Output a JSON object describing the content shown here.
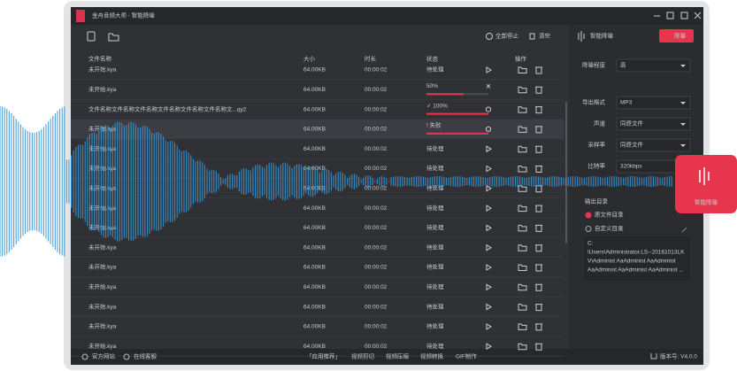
{
  "title_bar": {
    "title": "金舟音频大师 - 智能降噪"
  },
  "toolbar": {
    "stop_all": "全部停止",
    "clear": "清空"
  },
  "table": {
    "columns": [
      "文件名称",
      "大小",
      "时长",
      "状态",
      "操作"
    ],
    "rows": [
      [
        "未开始.kya",
        "64.00KB",
        "00:00:02",
        "待处理"
      ],
      [
        "未开始.kya",
        "64.00KB",
        "00:00:02",
        "50%"
      ],
      [
        "文件名称文件名称文件名称文件名称文件名称文件名称文...qy2",
        "64.00KB",
        "00:00:02",
        "✓ 100%"
      ],
      [
        "未开始.kya",
        "64.00KB",
        "00:00:02",
        "! 失败"
      ],
      [
        "未开始.kya",
        "64.00KB",
        "00:00:02",
        "待处理"
      ],
      [
        "未开始.kya",
        "64.00KB",
        "00:00:02",
        "待处理"
      ],
      [
        "未开始.kya",
        "64.00KB",
        "00:00:02",
        "待处理"
      ],
      [
        "未开始.kya",
        "64.00KB",
        "00:00:02",
        "待处理"
      ],
      [
        "未开始.kya",
        "64.00KB",
        "00:00:02",
        "待处理"
      ],
      [
        "未开始.kya",
        "64.00KB",
        "00:00:02",
        "待处理"
      ],
      [
        "未开始.kya",
        "64.00KB",
        "00:00:02",
        "待处理"
      ],
      [
        "未开始.kya",
        "64.00KB",
        "00:00:02",
        "待处理"
      ],
      [
        "未开始.kya",
        "64.00KB",
        "00:00:02",
        "待处理"
      ],
      [
        "未开始.kya",
        "64.00KB",
        "00:00:02",
        "待处理"
      ],
      [
        "未开始.kya",
        "64.00KB",
        "00:00:02",
        "待处理"
      ]
    ]
  },
  "panel": {
    "title": "智能降噪",
    "action": "降噪",
    "settings": [
      {
        "label": "降噪程度",
        "value": "高"
      },
      {
        "label": "导出格式",
        "value": "MP3"
      },
      {
        "label": "声道",
        "value": "同原文件"
      },
      {
        "label": "采样率",
        "value": "同原文件"
      },
      {
        "label": "比特率",
        "value": "320kbps"
      }
    ],
    "output_label": "输出目录",
    "options": [
      "原文件目录",
      "自定义目录"
    ],
    "path_lines": [
      "C:",
      "\\Users\\Administrator.LS--20161013LK",
      "V\\Administ AaAdminist AaAdminist",
      "AaAdminist AaAdminist AaAdminist ..."
    ]
  },
  "footer": {
    "links": [
      "官方网站",
      "在线客服"
    ],
    "tools": [
      "「应用推荐」",
      "视频剪切",
      "视频压缩",
      "视频转换",
      "GIF制作"
    ],
    "version": "版本号: V4.0.0"
  },
  "badge": {
    "label": "智能降噪"
  }
}
